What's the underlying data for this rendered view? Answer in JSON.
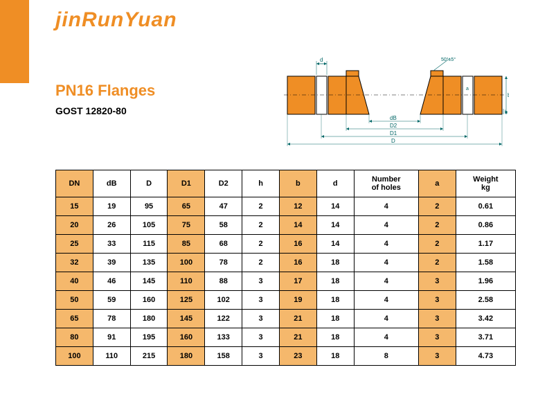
{
  "colors": {
    "accent": "#ef8e25",
    "title": "#ef8e25",
    "logo": "#ef8e25",
    "cell_hl": "#f5b86c",
    "header_hl": "#f5b86c",
    "border": "#000000",
    "text": "#000000",
    "bg": "#ffffff"
  },
  "logo": "jinRunYuan",
  "title": "PN16 Flanges",
  "subtitle": "GOST 12820-80",
  "diagram": {
    "labels": {
      "d_top": "d",
      "angle": "50°±5°",
      "a": "a",
      "b": "b",
      "h": "h",
      "dB": "dB",
      "D2": "D2",
      "D1": "D1",
      "D": "D"
    }
  },
  "table": {
    "highlight_cols": [
      0,
      3,
      6,
      9
    ],
    "columns": [
      "DN",
      "dB",
      "D",
      "D1",
      "D2",
      "h",
      "b",
      "d",
      "Number\nof holes",
      "a",
      "Weight\nkg"
    ],
    "col_widths_pct": [
      7.5,
      7.5,
      7.5,
      7.5,
      7.5,
      7.5,
      7.5,
      7.5,
      13,
      7.5,
      12
    ],
    "rows": [
      [
        "15",
        "19",
        "95",
        "65",
        "47",
        "2",
        "12",
        "14",
        "4",
        "2",
        "0.61"
      ],
      [
        "20",
        "26",
        "105",
        "75",
        "58",
        "2",
        "14",
        "14",
        "4",
        "2",
        "0.86"
      ],
      [
        "25",
        "33",
        "115",
        "85",
        "68",
        "2",
        "16",
        "14",
        "4",
        "2",
        "1.17"
      ],
      [
        "32",
        "39",
        "135",
        "100",
        "78",
        "2",
        "16",
        "18",
        "4",
        "2",
        "1.58"
      ],
      [
        "40",
        "46",
        "145",
        "110",
        "88",
        "3",
        "17",
        "18",
        "4",
        "3",
        "1.96"
      ],
      [
        "50",
        "59",
        "160",
        "125",
        "102",
        "3",
        "19",
        "18",
        "4",
        "3",
        "2.58"
      ],
      [
        "65",
        "78",
        "180",
        "145",
        "122",
        "3",
        "21",
        "18",
        "4",
        "3",
        "3.42"
      ],
      [
        "80",
        "91",
        "195",
        "160",
        "133",
        "3",
        "21",
        "18",
        "4",
        "3",
        "3.71"
      ],
      [
        "100",
        "110",
        "215",
        "180",
        "158",
        "3",
        "23",
        "18",
        "8",
        "3",
        "4.73"
      ]
    ]
  }
}
